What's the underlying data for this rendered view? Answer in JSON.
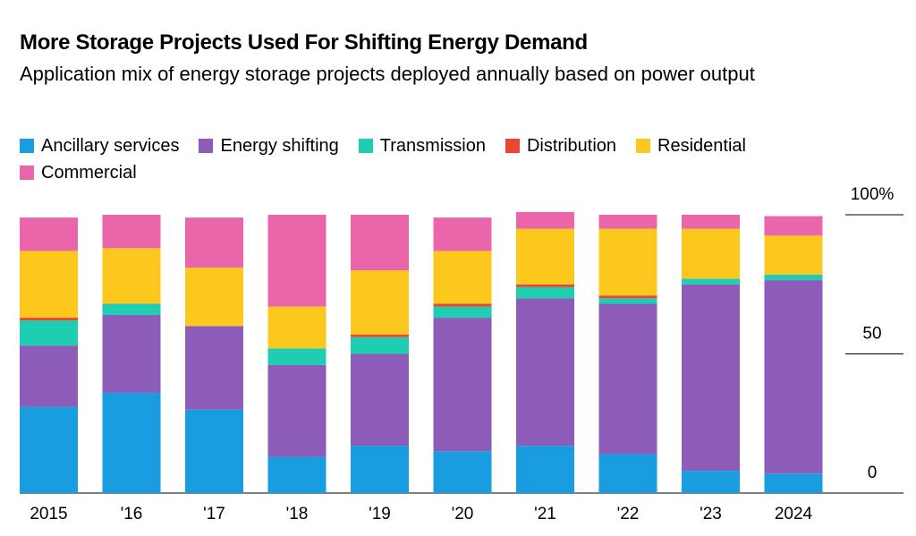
{
  "chart_data": {
    "type": "stacked-bar",
    "title": "More Storage Projects Used For Shifting Energy Demand",
    "subtitle": "Application mix of energy storage projects deployed annually based on power output",
    "categories": [
      "2015",
      "'16",
      "'17",
      "'18",
      "'19",
      "'20",
      "'21",
      "'22",
      "'23",
      "2024"
    ],
    "series": [
      {
        "name": "Ancillary services",
        "color": "#1a9de0",
        "values": [
          31,
          36,
          30,
          13,
          17,
          15,
          17,
          14,
          8,
          7
        ]
      },
      {
        "name": "Energy shifting",
        "color": "#8c5cb8",
        "values": [
          22,
          28,
          30,
          33,
          33,
          48,
          53,
          54,
          67,
          69.5
        ]
      },
      {
        "name": "Transmission",
        "color": "#1fceb2",
        "values": [
          9,
          4,
          0,
          6,
          6,
          4,
          4,
          2,
          2,
          2
        ]
      },
      {
        "name": "Distribution",
        "color": "#e9472f",
        "values": [
          1,
          0,
          0,
          0,
          1,
          1,
          1,
          1,
          0,
          0
        ]
      },
      {
        "name": "Residential",
        "color": "#fcc81d",
        "values": [
          24,
          20,
          21,
          15,
          23,
          19,
          20,
          24,
          18,
          14
        ]
      },
      {
        "name": "Commercial",
        "color": "#eb65aa",
        "values": [
          12,
          12,
          18,
          33,
          20,
          12,
          6,
          5,
          5,
          7
        ]
      }
    ],
    "ylim": [
      0,
      100
    ],
    "yticks": [
      0,
      50,
      {
        "value": 100,
        "label": "100%"
      }
    ]
  }
}
